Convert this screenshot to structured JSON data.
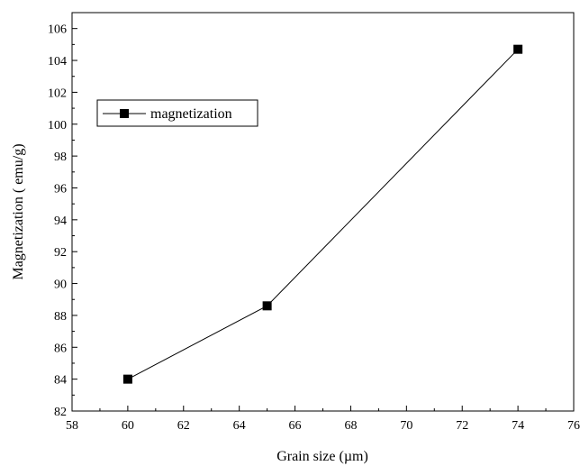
{
  "chart_data": {
    "type": "line",
    "title": "",
    "xlabel": "Grain size (µm)",
    "ylabel": "Magnetization ( emu/g)",
    "xlim": [
      58,
      76
    ],
    "ylim": [
      82,
      107
    ],
    "x_ticks": [
      58,
      60,
      62,
      64,
      66,
      68,
      70,
      72,
      74,
      76
    ],
    "y_ticks": [
      82,
      84,
      86,
      88,
      90,
      92,
      94,
      96,
      98,
      100,
      102,
      104,
      106
    ],
    "grid": false,
    "legend_position": "upper-left",
    "series": [
      {
        "name": "magnetization",
        "marker": "filled-square",
        "color": "#000000",
        "x": [
          60,
          65,
          74
        ],
        "y": [
          84.0,
          88.6,
          104.7
        ]
      }
    ]
  }
}
